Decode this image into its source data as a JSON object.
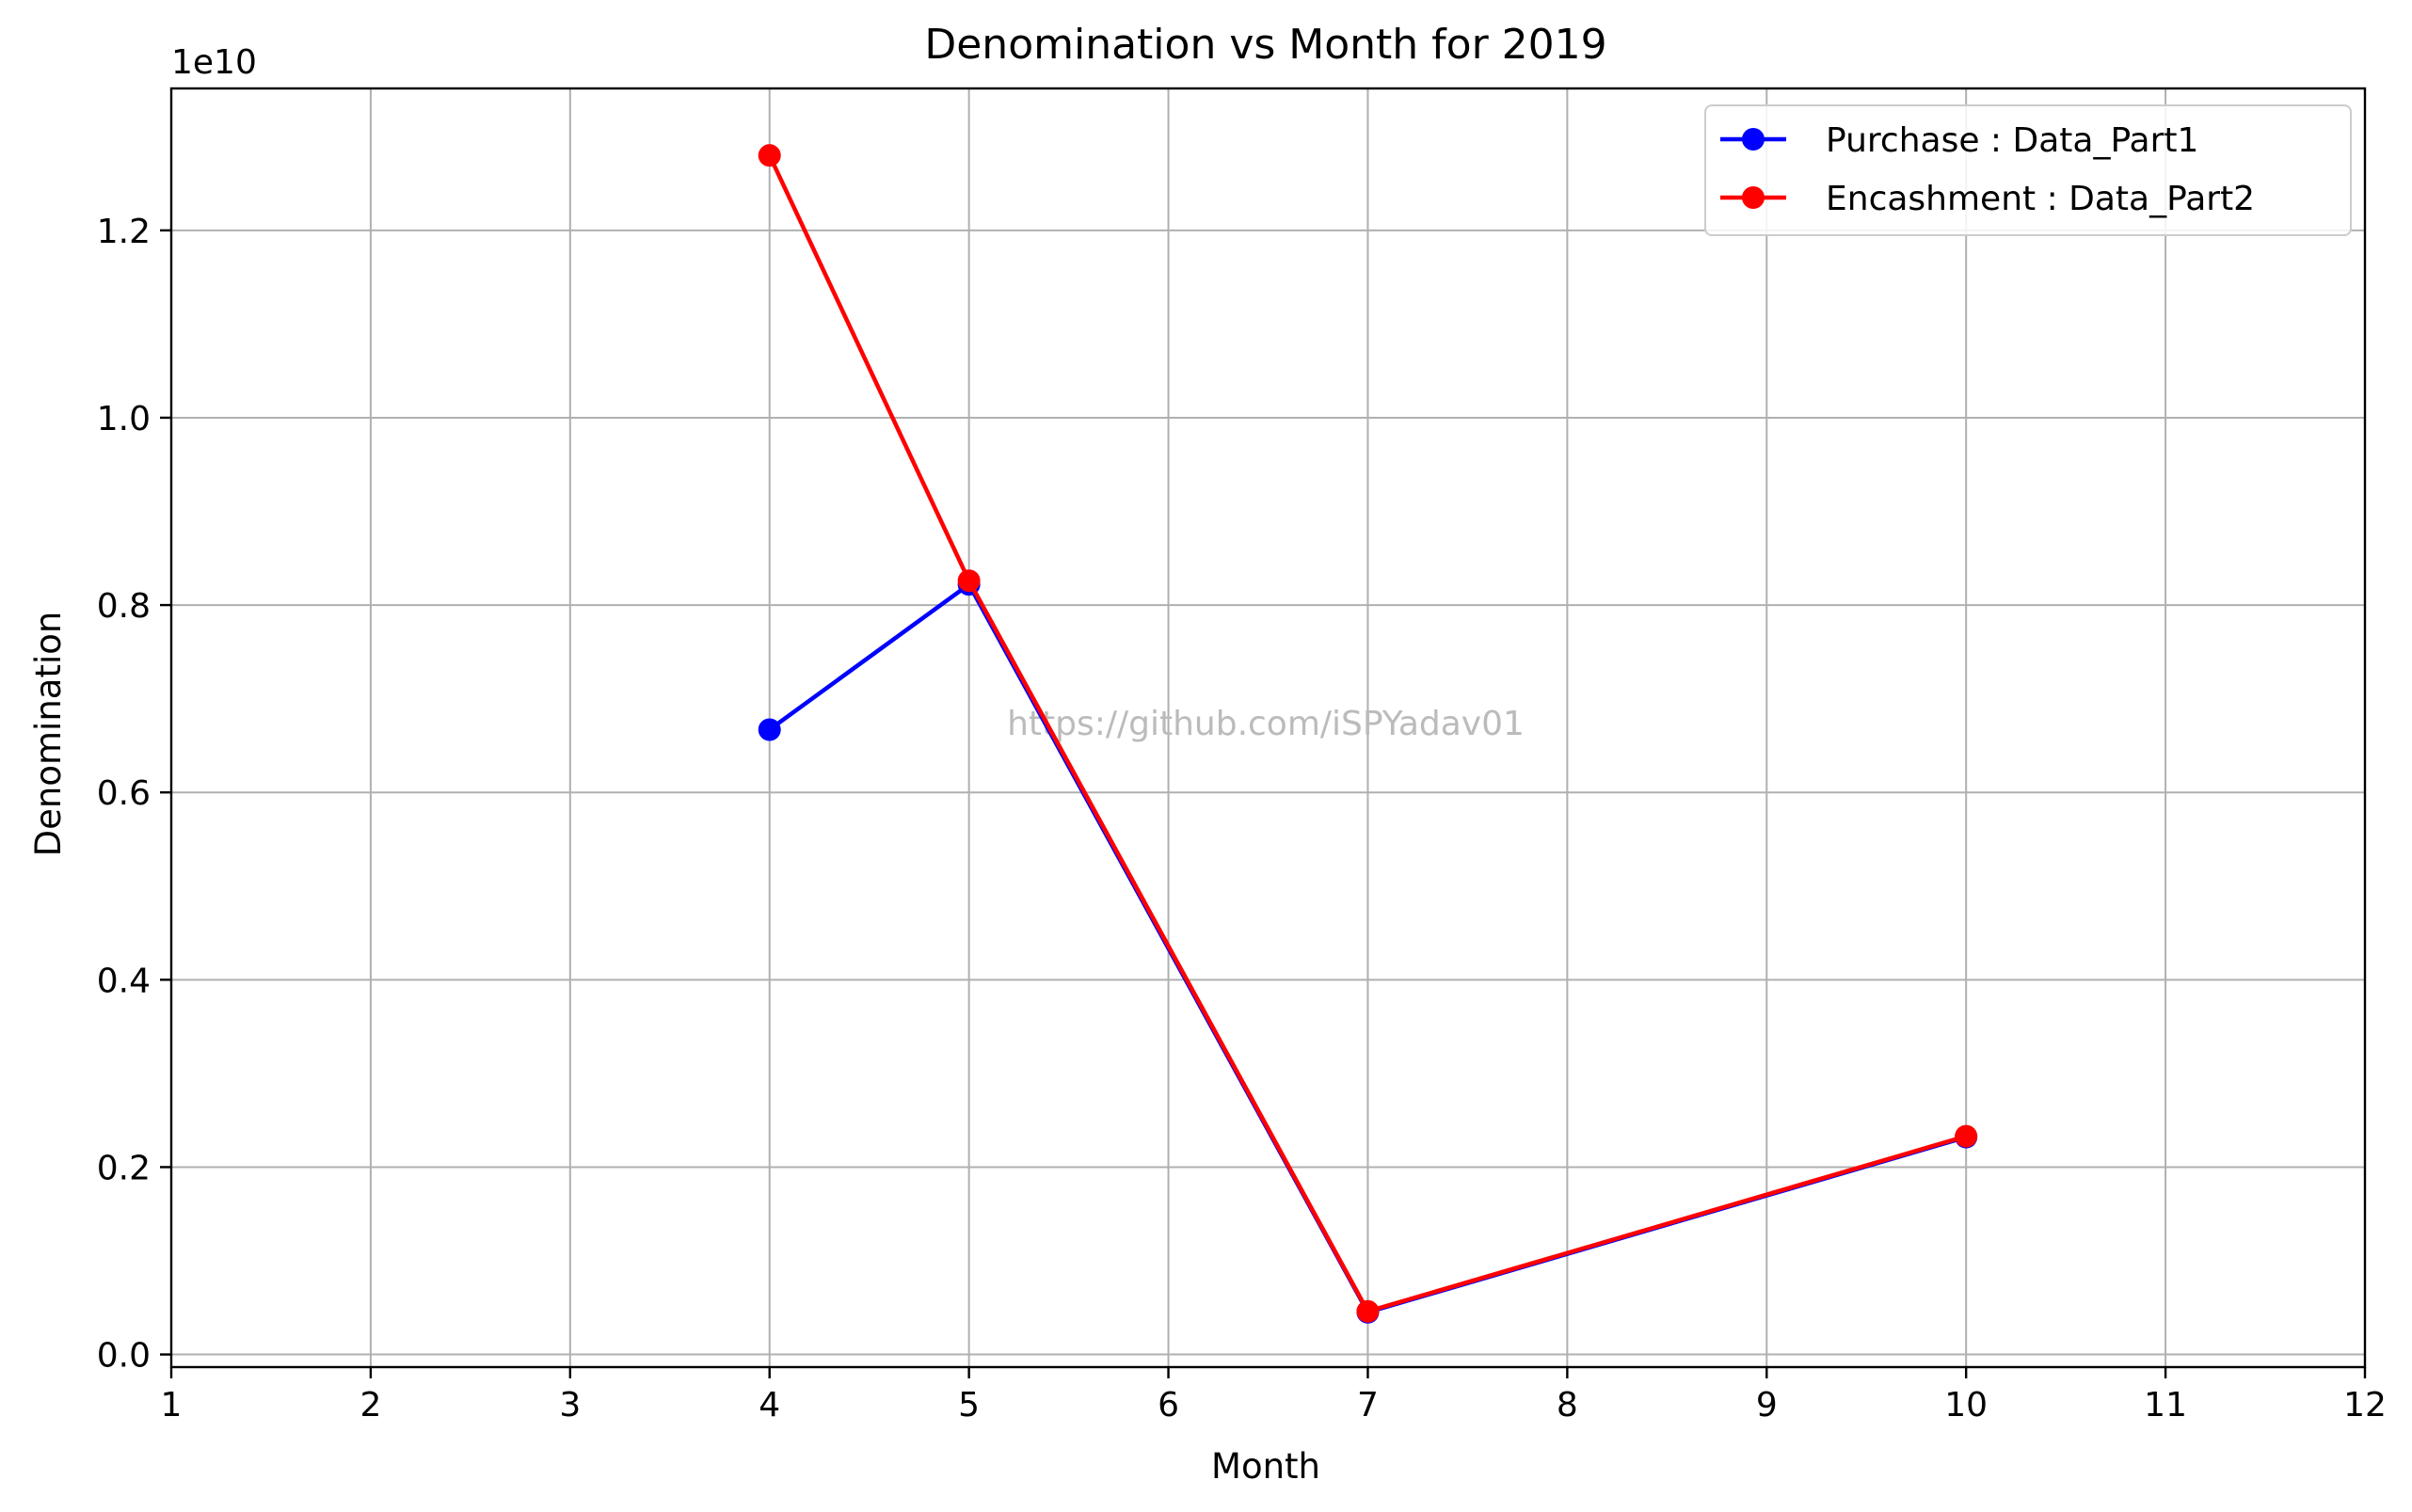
{
  "chart_data": {
    "type": "line",
    "title": "Denomination vs Month for 2019",
    "xlabel": "Month",
    "ylabel": "Denomination",
    "y_offset_label": "1e10",
    "xlim": [
      1,
      12
    ],
    "ylim": [
      -0.0135,
      1.3515
    ],
    "x_ticks": [
      1,
      2,
      3,
      4,
      5,
      6,
      7,
      8,
      9,
      10,
      11,
      12
    ],
    "y_ticks": [
      0.0,
      0.2,
      0.4,
      0.6,
      0.8,
      1.0,
      1.2
    ],
    "y_tick_labels": [
      "0.0",
      "0.2",
      "0.4",
      "0.6",
      "0.8",
      "1.0",
      "1.2"
    ],
    "grid": true,
    "legend_position": "top-right",
    "watermark": "https://github.com/iSPYadav01",
    "series": [
      {
        "name": "Purchase : Data_Part1",
        "color": "#0000ff",
        "marker": "circle",
        "x": [
          4,
          5,
          7,
          10
        ],
        "y": [
          0.667,
          0.822,
          0.045,
          0.232
        ]
      },
      {
        "name": "Encashment : Data_Part2",
        "color": "#ff0000",
        "marker": "circle",
        "x": [
          4,
          5,
          7,
          10
        ],
        "y": [
          1.28,
          0.826,
          0.046,
          0.233
        ]
      }
    ]
  }
}
